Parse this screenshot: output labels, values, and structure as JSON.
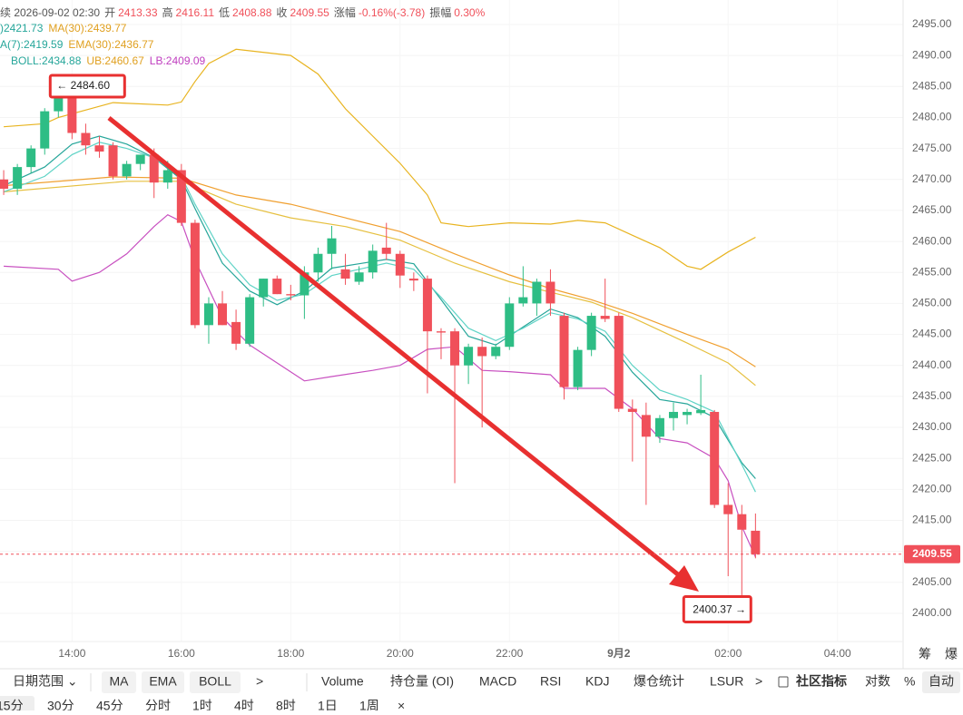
{
  "chart_data": {
    "type": "candlestick",
    "info": [
      {
        "k": "续 2026-09-02 02:30"
      },
      {
        "k": "开",
        "v": "2413.33"
      },
      {
        "k": "高",
        "v": "2416.11"
      },
      {
        "k": "低",
        "v": "2408.88"
      },
      {
        "k": "收",
        "v": "2409.55"
      },
      {
        "k": "涨幅",
        "v": "-0.16%(-3.78)"
      },
      {
        "k": "振幅",
        "v": "0.30%"
      }
    ],
    "legend_rows": [
      [
        {
          "text": ")2421.73",
          "color": "#26a69a"
        },
        {
          "text": "MA(30):2439.77",
          "color": "#e0a020"
        }
      ],
      [
        {
          "text": "A(7):2419.59",
          "color": "#26a69a"
        },
        {
          "text": "EMA(30):2436.77",
          "color": "#e0a020"
        }
      ],
      [
        {
          "text": "BOLL:2434.88",
          "color": "#26a69a"
        },
        {
          "text": "UB:2460.67",
          "color": "#e0a020"
        },
        {
          "text": "LB:2409.09",
          "color": "#c040c0"
        }
      ]
    ],
    "up_color": "#2ebd85",
    "down_color": "#f0505a",
    "candles": {
      "open": [
        2470,
        2468.5,
        2472,
        2475,
        2481,
        2483.5,
        2477.5,
        2475.5,
        2475.5,
        2470.5,
        2472.5,
        2474,
        2469.5,
        2471.5,
        2463,
        2446.5,
        2450,
        2447,
        2443.5,
        2451,
        2454,
        2451.5,
        2451.3,
        2455,
        2458,
        2455.5,
        2453.5,
        2455,
        2459,
        2458,
        2454,
        2454,
        2445.5,
        2445.5,
        2440,
        2443,
        2441.5,
        2443,
        2450,
        2450,
        2453.5,
        2448,
        2436.5,
        2442.5,
        2448,
        2448,
        2433,
        2432,
        2428.5,
        2431.5,
        2432,
        2432.3,
        2432.5,
        2417.5,
        2416,
        2413.33
      ],
      "high": [
        2471.5,
        2472.5,
        2475.5,
        2481.5,
        2484.6,
        2484,
        2479,
        2477,
        2476,
        2473,
        2474,
        2475,
        2473,
        2472.5,
        2463.5,
        2451,
        2452,
        2449,
        2451.5,
        2454,
        2454.5,
        2453,
        2456,
        2459,
        2462.5,
        2458,
        2456,
        2459.5,
        2463,
        2458.5,
        2455,
        2454.5,
        2446,
        2446,
        2443.5,
        2444.5,
        2443.5,
        2451,
        2456,
        2454,
        2455.5,
        2448.5,
        2443,
        2448.5,
        2454,
        2448.5,
        2434.5,
        2434,
        2432,
        2434,
        2433,
        2438.5,
        2432.8,
        2421,
        2417.5,
        2416.11
      ],
      "low": [
        2467.5,
        2467.5,
        2471,
        2474,
        2480,
        2476.5,
        2474,
        2473.5,
        2470,
        2470,
        2471.5,
        2467,
        2468.5,
        2462.5,
        2446,
        2443.5,
        2446.5,
        2442.5,
        2443,
        2449.5,
        2451.5,
        2450.5,
        2447.5,
        2453.5,
        2455.5,
        2453,
        2453,
        2454,
        2457,
        2452.5,
        2452,
        2435.5,
        2441,
        2421,
        2437,
        2430,
        2441,
        2442.5,
        2449.5,
        2448,
        2448,
        2434.5,
        2436,
        2441.5,
        2447,
        2432.5,
        2424.5,
        2417.5,
        2427.5,
        2429.5,
        2430.5,
        2432,
        2417,
        2406,
        2400.37,
        2408.88
      ],
      "close": [
        2468.5,
        2472,
        2475,
        2481,
        2483.5,
        2477.5,
        2475.5,
        2474.5,
        2470.5,
        2472.5,
        2474,
        2469.5,
        2471.5,
        2463,
        2446.5,
        2450,
        2446.5,
        2443.5,
        2451,
        2454,
        2451.5,
        2451.3,
        2455,
        2458,
        2460.5,
        2454,
        2455,
        2458.5,
        2458,
        2454.5,
        2453.7,
        2445.5,
        2445.3,
        2440,
        2443,
        2441.5,
        2443,
        2450,
        2451,
        2453.5,
        2450,
        2436.5,
        2442.5,
        2448,
        2447.5,
        2433,
        2432.5,
        2428.5,
        2431.5,
        2432.5,
        2432.5,
        2432.8,
        2417.5,
        2416,
        2413.5,
        2409.55
      ]
    },
    "series": [
      {
        "name": "UB",
        "color": "#e8b420",
        "x": [
          0,
          3,
          4,
          8,
          12,
          13,
          14,
          15,
          17,
          21,
          23,
          25,
          27,
          29,
          31,
          32,
          34,
          37,
          40,
          42,
          44,
          46,
          48,
          50,
          51,
          53,
          55
        ],
        "values": [
          2478.5,
          2479,
          2480,
          2482.4,
          2482,
          2482.5,
          2485.8,
          2488.7,
          2491,
          2490,
          2487,
          2481.4,
          2477,
          2472.6,
          2467.5,
          2463,
          2462.4,
          2463,
          2462.8,
          2463.4,
          2463,
          2461,
          2459,
          2456,
          2455.5,
          2458.3,
          2460.67
        ]
      },
      {
        "name": "MA(30)",
        "color": "#f0a030",
        "x": [
          0,
          8,
          13,
          17,
          21,
          25,
          29,
          33,
          37,
          40,
          43,
          46,
          50,
          53,
          55
        ],
        "values": [
          2469,
          2470.4,
          2470.2,
          2467.5,
          2466,
          2463.8,
          2461.6,
          2458,
          2454.6,
          2452.4,
          2450.6,
          2448.4,
          2445,
          2442.6,
          2439.77
        ]
      },
      {
        "name": "EMA(30)",
        "color": "#e6c040",
        "x": [
          0,
          9,
          13,
          17,
          21,
          25,
          29,
          33,
          37,
          40,
          43,
          46,
          50,
          53,
          55
        ],
        "values": [
          2468,
          2469.7,
          2469.7,
          2466,
          2463.8,
          2462.4,
          2460.2,
          2456.5,
          2453.5,
          2451.8,
          2450.2,
          2447.7,
          2443.6,
          2440.4,
          2436.77
        ]
      },
      {
        "name": "LB",
        "color": "#c850c0",
        "x": [
          0,
          4,
          5,
          7,
          9,
          11,
          12,
          13,
          14,
          16,
          18,
          20,
          22,
          24,
          27,
          29,
          31,
          33,
          35,
          37,
          40,
          41,
          44,
          46,
          48,
          50,
          52,
          53,
          54,
          55
        ],
        "values": [
          2456,
          2455.5,
          2453.6,
          2455,
          2458,
          2462.4,
          2464.3,
          2463.2,
          2457,
          2447.7,
          2443.3,
          2440.4,
          2437.5,
          2438.2,
          2439.2,
          2440,
          2442.6,
          2443,
          2439.2,
          2439,
          2438.5,
          2436.3,
          2436.3,
          2433,
          2428.2,
          2427.5,
          2425,
          2421.4,
          2414,
          2409.09
        ]
      },
      {
        "name": "MA(7)",
        "color": "#26a69a",
        "x": [
          0,
          3,
          5,
          7,
          9,
          11,
          13,
          14,
          16,
          18,
          20,
          22,
          24,
          26,
          28,
          30,
          32,
          34,
          36,
          38,
          40,
          42,
          44,
          46,
          48,
          50,
          52,
          54,
          55
        ],
        "values": [
          2469,
          2472,
          2475.7,
          2477,
          2475.7,
          2473.5,
          2470,
          2465.3,
          2456.5,
          2452,
          2449.8,
          2452,
          2455.7,
          2456.4,
          2457.1,
          2456.4,
          2450.6,
          2444.7,
          2443.3,
          2446.2,
          2449.1,
          2447.7,
          2444.7,
          2438.9,
          2434.5,
          2433.8,
          2431.6,
          2424.3,
          2421.73
        ]
      },
      {
        "name": "EMA(7)",
        "color": "#5fd3c6",
        "x": [
          0,
          3,
          5,
          7,
          9,
          11,
          13,
          14,
          16,
          18,
          20,
          22,
          24,
          26,
          28,
          30,
          32,
          34,
          36,
          38,
          40,
          42,
          44,
          46,
          48,
          50,
          52,
          54,
          55
        ],
        "values": [
          2468,
          2470.5,
          2474,
          2476,
          2475,
          2473.5,
          2470.5,
          2466,
          2458,
          2453,
          2450.5,
          2451.5,
          2454.5,
          2455.5,
          2456.5,
          2455.5,
          2451,
          2446,
          2444,
          2446,
          2448.5,
          2447.5,
          2445.5,
          2440,
          2436,
          2434.5,
          2432.5,
          2424,
          2419.59
        ]
      }
    ],
    "high_label": "← 2484.60",
    "low_label": "2400.37 →",
    "last_label": "2409.55",
    "xlim": [
      -0.27,
      65.8
    ],
    "xticks": [
      {
        "value": 5,
        "label": "14:00"
      },
      {
        "value": 13,
        "label": "16:00"
      },
      {
        "value": 21,
        "label": "18:00"
      },
      {
        "value": 29,
        "label": "20:00"
      },
      {
        "value": 37,
        "label": "22:00"
      },
      {
        "value": 45,
        "label": "9月2"
      },
      {
        "value": 53,
        "label": "02:00"
      },
      {
        "value": 61,
        "label": "04:00"
      }
    ],
    "ylim": [
      2395.46,
      2498.95
    ],
    "yticks": [
      {
        "value": 2400,
        "label": "2400.00"
      },
      {
        "value": 2405,
        "label": "2405.00"
      },
      {
        "value": 2410,
        "label": "2410.00"
      },
      {
        "value": 2415,
        "label": "2415.00"
      },
      {
        "value": 2420,
        "label": "2420.00"
      },
      {
        "value": 2425,
        "label": "2425.00"
      },
      {
        "value": 2430,
        "label": "2430.00"
      },
      {
        "value": 2435,
        "label": "2435.00"
      },
      {
        "value": 2440,
        "label": "2440.00"
      },
      {
        "value": 2445,
        "label": "2445.00"
      },
      {
        "value": 2450,
        "label": "2450.00"
      },
      {
        "value": 2455,
        "label": "2455.00"
      },
      {
        "value": 2460,
        "label": "2460.00"
      },
      {
        "value": 2465,
        "label": "2465.00"
      },
      {
        "value": 2470,
        "label": "2470.00"
      },
      {
        "value": 2475,
        "label": "2475.00"
      },
      {
        "value": 2480,
        "label": "2480.00"
      },
      {
        "value": 2485,
        "label": "2485.00"
      },
      {
        "value": 2490,
        "label": "2490.00"
      },
      {
        "value": 2495,
        "label": "2495.00"
      }
    ],
    "grid": true
  },
  "axis_tools": [
    "筹",
    "爆"
  ],
  "toolbar": {
    "date_range": "日期范围 ⌄",
    "overlays": [
      "MA",
      "EMA",
      "BOLL"
    ],
    "more": ">",
    "indicators": [
      "Volume",
      "持仓量 (OI)",
      "MACD",
      "RSI",
      "KDJ",
      "爆仓统计",
      "LSUR"
    ],
    "more2": ">",
    "community": "社区指标",
    "log": "对数",
    "percent": "%",
    "auto": "自动"
  },
  "intervals": [
    "15分",
    "30分",
    "45分",
    "分时",
    "1时",
    "4时",
    "8时",
    "1日",
    "1周",
    "×"
  ]
}
